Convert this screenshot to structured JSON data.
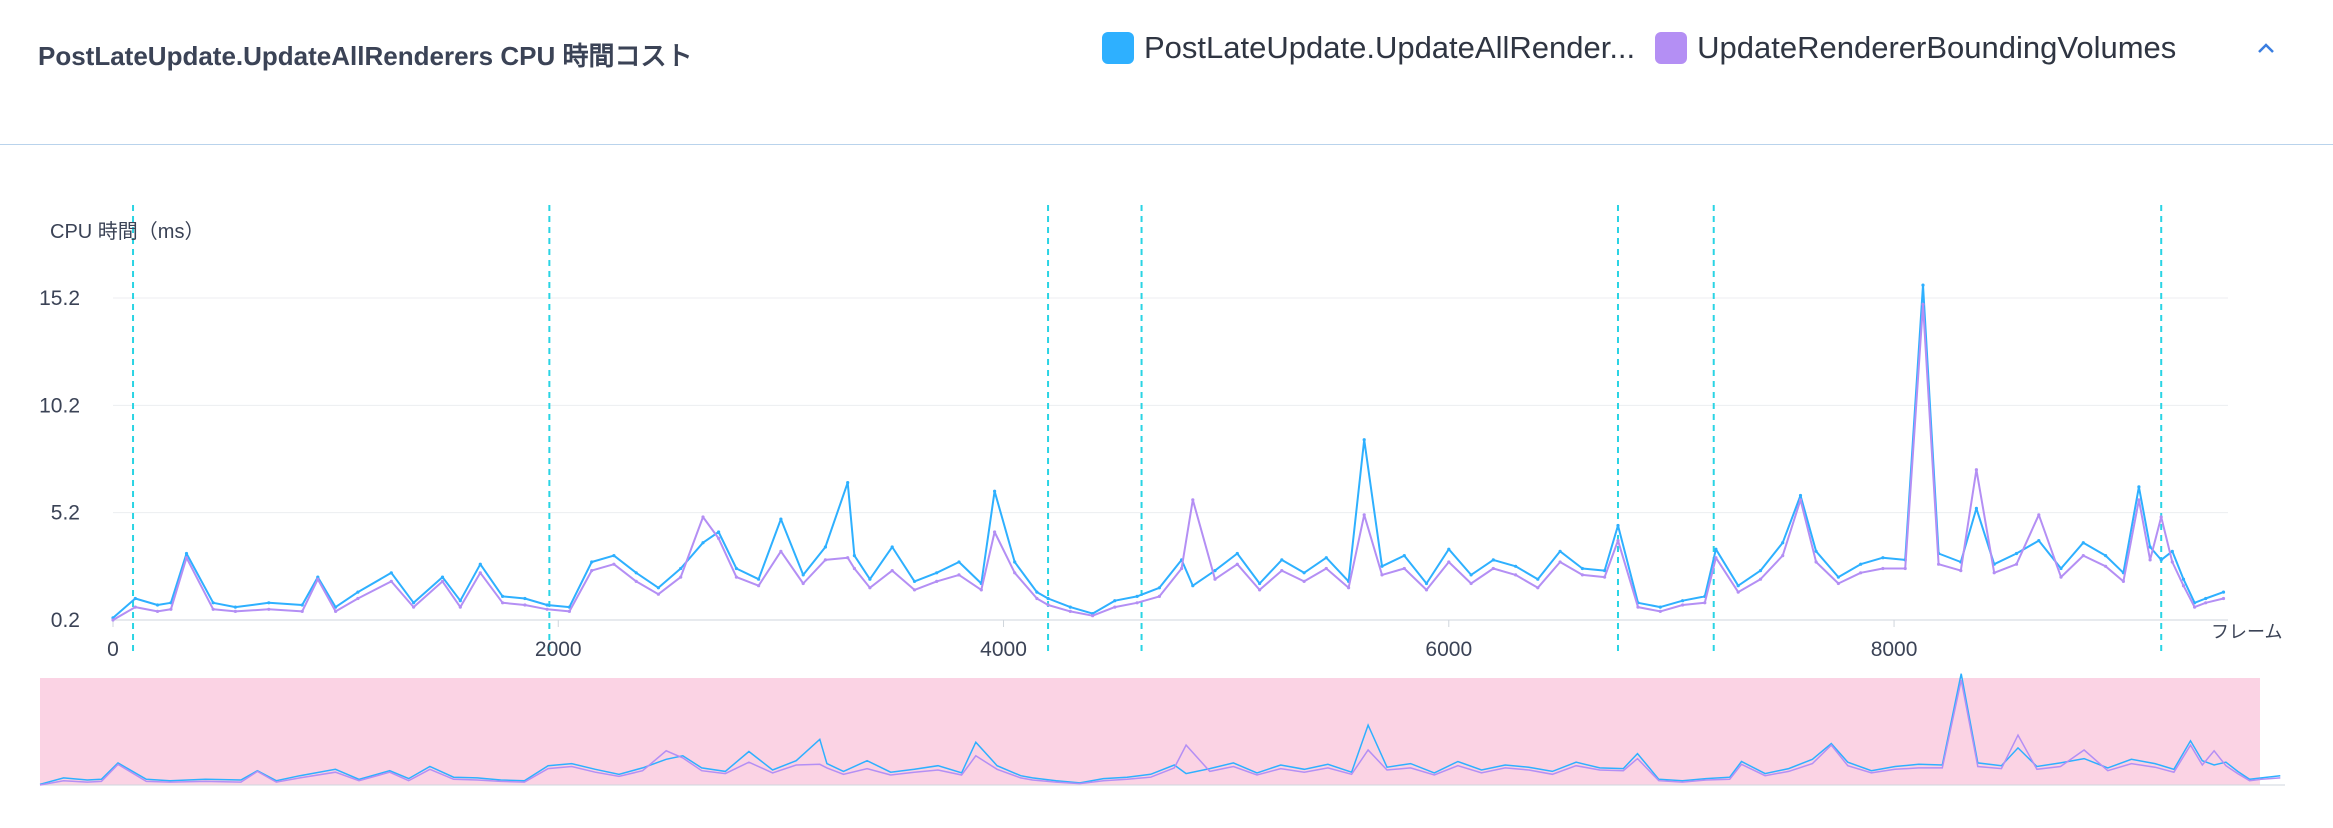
{
  "header": {
    "title": "PostLateUpdate.UpdateAllRenderers CPU 時間コスト",
    "collapse_icon": "chevron-up-icon"
  },
  "colors": {
    "series_1": "#2eb0ff",
    "series_2": "#b48ff4",
    "marker": "#2ad4e4",
    "brush": "#fbd3e4",
    "accent": "#3a7ee0"
  },
  "chart_data": {
    "type": "line",
    "title": "PostLateUpdate.UpdateAllRenderers CPU 時間コスト",
    "ylabel": "CPU 時間（ms）",
    "xlabel": "フレーム",
    "xlim": [
      0,
      9500
    ],
    "ylim": [
      0.2,
      15.2
    ],
    "y_ticks": [
      "0.2",
      "5.2",
      "10.2",
      "15.2"
    ],
    "x_ticks": [
      "0",
      "2000",
      "4000",
      "6000",
      "8000"
    ],
    "y_tick_values": [
      0.2,
      5.2,
      10.2,
      15.2
    ],
    "x_tick_values": [
      0,
      2000,
      4000,
      6000,
      8000
    ],
    "grid": true,
    "legend": "top-right",
    "series": [
      {
        "name": "PostLateUpdate.UpdateAllRender...",
        "color": "#2eb0ff",
        "x": [
          0,
          100,
          200,
          260,
          330,
          450,
          550,
          700,
          850,
          920,
          1000,
          1100,
          1250,
          1350,
          1480,
          1560,
          1650,
          1750,
          1850,
          1950,
          2050,
          2150,
          2250,
          2350,
          2450,
          2550,
          2650,
          2720,
          2800,
          2900,
          3000,
          3100,
          3200,
          3300,
          3330,
          3400,
          3500,
          3600,
          3700,
          3800,
          3900,
          3960,
          4050,
          4150,
          4200,
          4300,
          4400,
          4500,
          4600,
          4700,
          4800,
          4850,
          4950,
          5050,
          5150,
          5250,
          5350,
          5450,
          5550,
          5620,
          5700,
          5800,
          5900,
          6000,
          6100,
          6200,
          6300,
          6400,
          6500,
          6600,
          6700,
          6760,
          6850,
          6950,
          7050,
          7150,
          7200,
          7300,
          7400,
          7500,
          7580,
          7650,
          7750,
          7850,
          7950,
          8050,
          8130,
          8200,
          8300,
          8370,
          8450,
          8550,
          8650,
          8750,
          8850,
          8950,
          9030,
          9100,
          9150,
          9200,
          9250,
          9300,
          9350,
          9400,
          9480
        ],
        "y": [
          0.3,
          1.2,
          0.9,
          1.0,
          3.3,
          1.0,
          0.8,
          1.0,
          0.9,
          2.2,
          0.8,
          1.5,
          2.4,
          1.0,
          2.2,
          1.1,
          2.8,
          1.3,
          1.2,
          0.9,
          0.8,
          2.9,
          3.2,
          2.4,
          1.7,
          2.6,
          3.8,
          4.3,
          2.6,
          2.1,
          4.9,
          2.3,
          3.6,
          6.6,
          3.2,
          2.1,
          3.6,
          2.0,
          2.4,
          2.9,
          1.9,
          6.2,
          2.9,
          1.5,
          1.2,
          0.8,
          0.5,
          1.1,
          1.3,
          1.7,
          3.0,
          1.8,
          2.5,
          3.3,
          1.9,
          3.0,
          2.4,
          3.1,
          2.0,
          8.6,
          2.7,
          3.2,
          1.9,
          3.5,
          2.3,
          3.0,
          2.7,
          2.1,
          3.4,
          2.6,
          2.5,
          4.6,
          1.0,
          0.8,
          1.1,
          1.3,
          3.5,
          1.8,
          2.5,
          3.8,
          6.0,
          3.4,
          2.2,
          2.8,
          3.1,
          3.0,
          15.8,
          3.3,
          2.9,
          5.4,
          2.8,
          3.3,
          3.9,
          2.6,
          3.8,
          3.2,
          2.4,
          6.4,
          3.6,
          3.0,
          3.4,
          2.1,
          1.0,
          1.2,
          1.5
        ]
      },
      {
        "name": "UpdateRendererBoundingVolumes",
        "color": "#b48ff4",
        "x": [
          0,
          100,
          200,
          260,
          330,
          450,
          550,
          700,
          850,
          920,
          1000,
          1100,
          1250,
          1350,
          1480,
          1560,
          1650,
          1750,
          1850,
          1950,
          2050,
          2150,
          2250,
          2350,
          2450,
          2550,
          2650,
          2720,
          2800,
          2900,
          3000,
          3100,
          3200,
          3300,
          3330,
          3400,
          3500,
          3600,
          3700,
          3800,
          3900,
          3960,
          4050,
          4150,
          4200,
          4300,
          4400,
          4500,
          4600,
          4700,
          4800,
          4850,
          4950,
          5050,
          5150,
          5250,
          5350,
          5450,
          5550,
          5620,
          5700,
          5800,
          5900,
          6000,
          6100,
          6200,
          6300,
          6400,
          6500,
          6600,
          6700,
          6760,
          6850,
          6950,
          7050,
          7150,
          7200,
          7300,
          7400,
          7500,
          7580,
          7650,
          7750,
          7850,
          7950,
          8050,
          8130,
          8200,
          8300,
          8370,
          8450,
          8550,
          8650,
          8750,
          8850,
          8950,
          9030,
          9100,
          9150,
          9200,
          9250,
          9300,
          9350,
          9400,
          9480
        ],
        "y": [
          0.2,
          0.8,
          0.6,
          0.7,
          3.1,
          0.7,
          0.6,
          0.7,
          0.6,
          2.1,
          0.6,
          1.2,
          2.0,
          0.8,
          2.0,
          0.8,
          2.4,
          1.0,
          0.9,
          0.7,
          0.6,
          2.5,
          2.8,
          2.0,
          1.4,
          2.2,
          5.0,
          4.0,
          2.2,
          1.8,
          3.4,
          1.9,
          3.0,
          3.1,
          2.6,
          1.7,
          2.5,
          1.6,
          2.0,
          2.3,
          1.6,
          4.3,
          2.4,
          1.2,
          0.9,
          0.6,
          0.4,
          0.8,
          1.0,
          1.3,
          2.6,
          5.8,
          2.1,
          2.8,
          1.6,
          2.5,
          2.0,
          2.6,
          1.7,
          5.1,
          2.3,
          2.6,
          1.6,
          2.9,
          1.9,
          2.6,
          2.3,
          1.7,
          2.9,
          2.3,
          2.2,
          3.9,
          0.8,
          0.6,
          0.9,
          1.0,
          3.1,
          1.5,
          2.1,
          3.2,
          5.8,
          2.9,
          1.9,
          2.4,
          2.6,
          2.6,
          14.9,
          2.8,
          2.5,
          7.2,
          2.4,
          2.8,
          5.1,
          2.2,
          3.2,
          2.7,
          2.0,
          5.8,
          3.0,
          5.0,
          2.9,
          1.8,
          0.8,
          1.0,
          1.2
        ]
      }
    ],
    "markers": [
      90,
      1960,
      4200,
      4620,
      6760,
      7190,
      9200
    ]
  }
}
